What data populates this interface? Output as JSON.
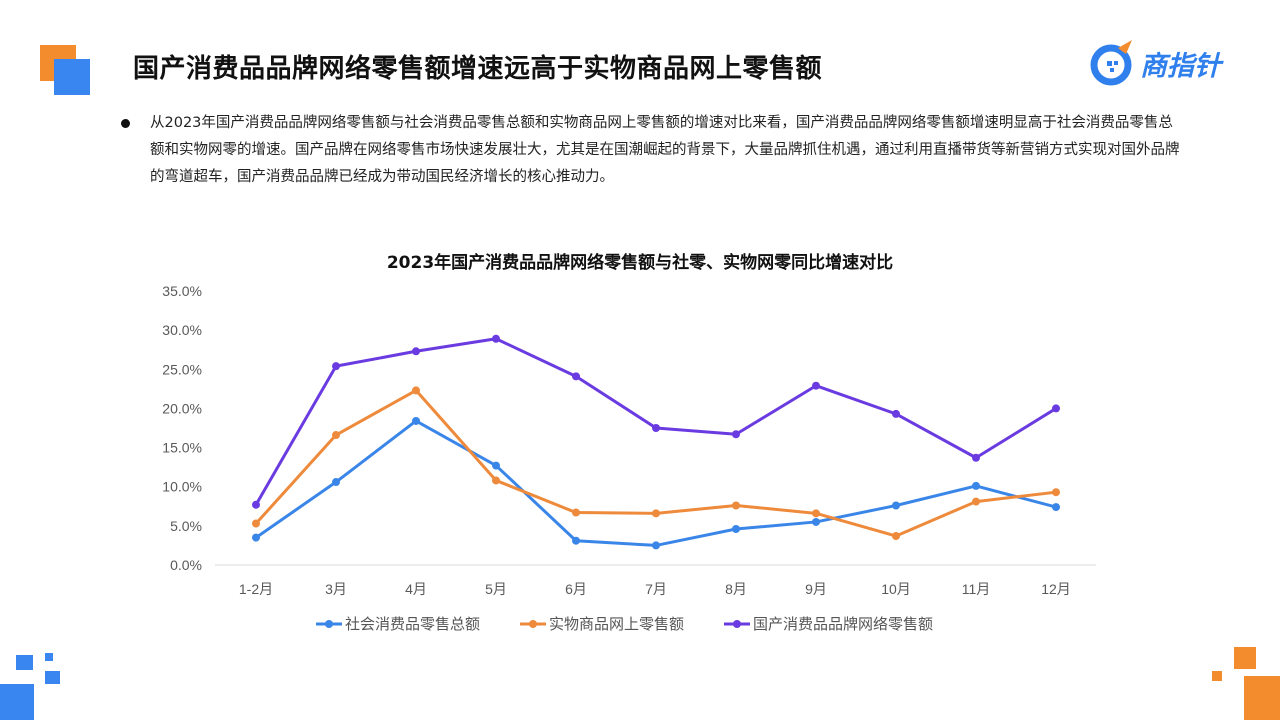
{
  "header": {
    "title": "国产消费品品牌网络零售额增速远高于实物商品网上零售额",
    "logo_text": "商指针"
  },
  "bullet": {
    "text": "从2023年国产消费品品牌网络零售额与社会消费品零售总额和实物商品网上零售额的增速对比来看，国产消费品品牌网络零售额增速明显高于社会消费品零售总额和实物网零的增速。国产品牌在网络零售市场快速发展壮大，尤其是在国潮崛起的背景下，大量品牌抓住机遇，通过利用直播带货等新营销方式实现对国外品牌的弯道超车，国产消费品品牌已经成为带动国民经济增长的核心推动力。"
  },
  "colors": {
    "series1": "#3a86e8",
    "series2": "#ee8a3b",
    "series3": "#6a3be0",
    "deco_orange": "#f28c2c",
    "deco_blue": "#3a86f0"
  },
  "chart_data": {
    "type": "line",
    "title": "2023年国产消费品品牌网络零售额与社零、实物网零同比增速对比",
    "categories": [
      "1-2月",
      "3月",
      "4月",
      "5月",
      "6月",
      "7月",
      "8月",
      "9月",
      "10月",
      "11月",
      "12月"
    ],
    "y_ticks": [
      "0.0%",
      "5.0%",
      "10.0%",
      "15.0%",
      "20.0%",
      "25.0%",
      "30.0%",
      "35.0%"
    ],
    "ylim": [
      0,
      35
    ],
    "grid": false,
    "legend_position": "bottom",
    "series": [
      {
        "name": "社会消费品零售总额",
        "values": [
          3.5,
          10.6,
          18.4,
          12.7,
          3.1,
          2.5,
          4.6,
          5.5,
          7.6,
          10.1,
          7.4
        ]
      },
      {
        "name": "实物商品网上零售额",
        "values": [
          5.3,
          16.6,
          22.3,
          10.8,
          6.7,
          6.6,
          7.6,
          6.6,
          3.7,
          8.1,
          9.3
        ]
      },
      {
        "name": "国产消费品品牌网络零售额",
        "values": [
          7.7,
          25.4,
          27.3,
          28.9,
          24.1,
          17.5,
          16.7,
          22.9,
          19.3,
          13.7,
          20.0
        ]
      }
    ]
  }
}
